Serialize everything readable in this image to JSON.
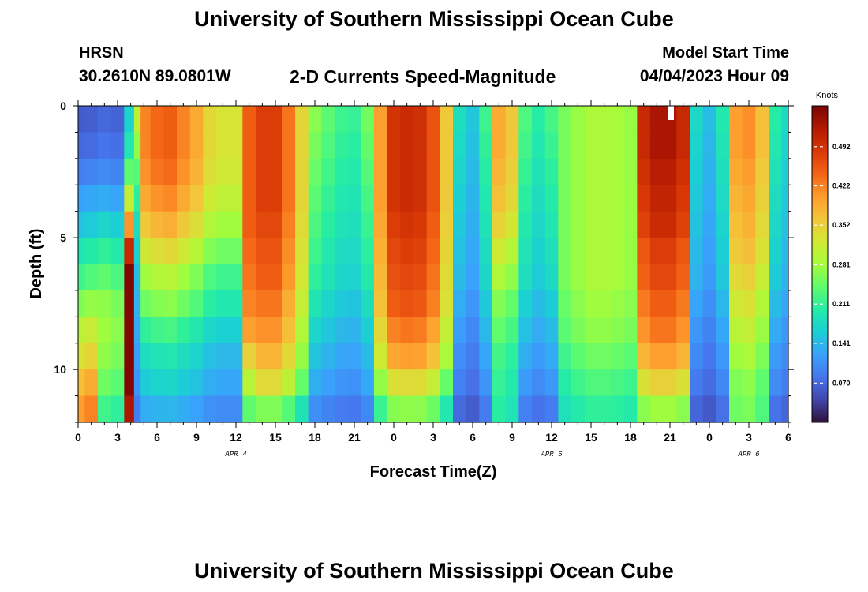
{
  "header": {
    "title": "University of Southern Mississippi Ocean Cube",
    "station": "HRSN",
    "coords": "30.2610N  89.0801W",
    "plot_title": "2-D Currents Speed-Magnitude",
    "start_label": "Model Start Time",
    "start_time": "04/04/2023 Hour 09"
  },
  "footer": {
    "title": "University of Southern Mississippi Ocean Cube"
  },
  "colors": {
    "c0": "#30123b",
    "c1": "#4145ab",
    "c2": "#4675ed",
    "c3": "#39a2fc",
    "c4": "#1bcfd4",
    "c5": "#24eca6",
    "c6": "#61fc6c",
    "c7": "#a4fc3b",
    "c8": "#d1e834",
    "c9": "#f3c63a",
    "c10": "#fe9b2d",
    "c11": "#f36315",
    "c12": "#d93806",
    "c13": "#b11901",
    "c14": "#7a0402"
  },
  "chart_data": {
    "type": "heatmap",
    "title": "2-D Currents Speed-Magnitude",
    "xlabel": "Forecast Time(Z)",
    "ylabel": "Depth (ft)",
    "x_unit": "hours since 04/04/2023 00Z",
    "xlim": [
      0,
      54
    ],
    "ylim": [
      0,
      12
    ],
    "x_ticks": [
      {
        "h": 0,
        "label": "0"
      },
      {
        "h": 3,
        "label": "3"
      },
      {
        "h": 6,
        "label": "6"
      },
      {
        "h": 9,
        "label": "9"
      },
      {
        "h": 12,
        "label": "12"
      },
      {
        "h": 15,
        "label": "15"
      },
      {
        "h": 18,
        "label": "18"
      },
      {
        "h": 21,
        "label": "21"
      },
      {
        "h": 24,
        "label": "0"
      },
      {
        "h": 27,
        "label": "3"
      },
      {
        "h": 30,
        "label": "6"
      },
      {
        "h": 33,
        "label": "9"
      },
      {
        "h": 36,
        "label": "12"
      },
      {
        "h": 39,
        "label": "15"
      },
      {
        "h": 42,
        "label": "18"
      },
      {
        "h": 45,
        "label": "21"
      },
      {
        "h": 48,
        "label": "0"
      },
      {
        "h": 51,
        "label": "3"
      },
      {
        "h": 54,
        "label": "6"
      }
    ],
    "date_labels": [
      {
        "h": 12,
        "label": "APR 4"
      },
      {
        "h": 36,
        "label": "APR 5"
      },
      {
        "h": 51,
        "label": "APR 6"
      }
    ],
    "y_ticks": [
      {
        "d": 0,
        "label": "0"
      },
      {
        "d": 5,
        "label": "5"
      },
      {
        "d": 10,
        "label": "10"
      }
    ],
    "colorbar": {
      "label": "Knots",
      "min": 0.0,
      "max": 0.565,
      "ticks": [
        0.07,
        0.141,
        0.211,
        0.281,
        0.352,
        0.422,
        0.492
      ],
      "tick_labels": [
        "0.070",
        "0.141",
        "0.211",
        "0.281",
        "0.352",
        "0.422",
        "0.492"
      ]
    },
    "depth_layers": 12,
    "depth_profiles": {
      "a": [
        0.06,
        0.07,
        0.09,
        0.12,
        0.15,
        0.19,
        0.22,
        0.26,
        0.3,
        0.33,
        0.37,
        0.4
      ],
      "b": [
        0.07,
        0.08,
        0.1,
        0.13,
        0.17,
        0.21,
        0.24,
        0.27,
        0.28,
        0.27,
        0.25,
        0.22
      ],
      "c": [
        0.34,
        0.3,
        0.26,
        0.23,
        0.2,
        0.18,
        0.16,
        0.15,
        0.14,
        0.13,
        0.12,
        0.1
      ],
      "d": [
        0.42,
        0.42,
        0.41,
        0.39,
        0.36,
        0.32,
        0.28,
        0.25,
        0.21,
        0.18,
        0.16,
        0.13
      ],
      "e": [
        0.45,
        0.45,
        0.45,
        0.45,
        0.45,
        0.44,
        0.43,
        0.42,
        0.4,
        0.35,
        0.3,
        0.24
      ],
      "f": [
        0.48,
        0.48,
        0.48,
        0.48,
        0.47,
        0.46,
        0.45,
        0.43,
        0.41,
        0.38,
        0.34,
        0.26
      ],
      "g": [
        0.28,
        0.27,
        0.26,
        0.25,
        0.24,
        0.23,
        0.22,
        0.2,
        0.18,
        0.16,
        0.14,
        0.11
      ],
      "h": [
        0.5,
        0.5,
        0.5,
        0.5,
        0.49,
        0.48,
        0.47,
        0.46,
        0.43,
        0.4,
        0.34,
        0.27
      ],
      "i": [
        0.4,
        0.4,
        0.39,
        0.38,
        0.36,
        0.33,
        0.3,
        0.27,
        0.25,
        0.23,
        0.22,
        0.21
      ],
      "j": [
        0.29,
        0.29,
        0.29,
        0.29,
        0.29,
        0.29,
        0.29,
        0.28,
        0.27,
        0.25,
        0.23,
        0.21
      ],
      "k": [
        0.53,
        0.53,
        0.52,
        0.51,
        0.5,
        0.48,
        0.47,
        0.45,
        0.43,
        0.4,
        0.35,
        0.28
      ],
      "l": [
        0.4,
        0.4,
        0.39,
        0.38,
        0.37,
        0.36,
        0.34,
        0.32,
        0.3,
        0.28,
        0.26,
        0.25
      ]
    },
    "columns": [
      {
        "t": 0.0,
        "p": "a",
        "s": 1.0
      },
      {
        "t": 1.0,
        "p": "a",
        "s": 1.05
      },
      {
        "t": 2.0,
        "p": "b",
        "s": 1.0
      },
      {
        "t": 3.0,
        "p": "b",
        "s": 0.95
      },
      {
        "t": 4.0,
        "p": "b",
        "s": 2.4
      },
      {
        "t": 4.5,
        "p": "c",
        "s": 0.9
      },
      {
        "t": 5.0,
        "p": "d",
        "s": 1.0
      },
      {
        "t": 6.0,
        "p": "d",
        "s": 1.05
      },
      {
        "t": 7.0,
        "p": "d",
        "s": 1.07
      },
      {
        "t": 8.0,
        "p": "d",
        "s": 1.0
      },
      {
        "t": 9.0,
        "p": "d",
        "s": 0.93
      },
      {
        "t": 10.0,
        "p": "d",
        "s": 0.82
      },
      {
        "t": 11.0,
        "p": "d",
        "s": 0.78
      },
      {
        "t": 12.0,
        "p": "d",
        "s": 0.78
      },
      {
        "t": 13.0,
        "p": "e",
        "s": 1.0
      },
      {
        "t": 14.0,
        "p": "f",
        "s": 1.0
      },
      {
        "t": 15.0,
        "p": "f",
        "s": 1.0
      },
      {
        "t": 16.0,
        "p": "f",
        "s": 0.9
      },
      {
        "t": 17.0,
        "p": "f",
        "s": 0.72
      },
      {
        "t": 18.0,
        "p": "g",
        "s": 0.95
      },
      {
        "t": 19.0,
        "p": "g",
        "s": 0.85
      },
      {
        "t": 20.0,
        "p": "g",
        "s": 0.78
      },
      {
        "t": 21.0,
        "p": "g",
        "s": 0.76
      },
      {
        "t": 22.0,
        "p": "g",
        "s": 0.9
      },
      {
        "t": 23.0,
        "p": "h",
        "s": 0.8
      },
      {
        "t": 24.0,
        "p": "h",
        "s": 0.98
      },
      {
        "t": 25.0,
        "p": "h",
        "s": 1.0
      },
      {
        "t": 26.0,
        "p": "h",
        "s": 0.99
      },
      {
        "t": 27.0,
        "p": "h",
        "s": 0.92
      },
      {
        "t": 28.0,
        "p": "h",
        "s": 0.72
      },
      {
        "t": 29.0,
        "p": "g",
        "s": 0.65
      },
      {
        "t": 30.0,
        "p": "g",
        "s": 0.55
      },
      {
        "t": 31.0,
        "p": "g",
        "s": 0.78
      },
      {
        "t": 32.0,
        "p": "i",
        "s": 0.97
      },
      {
        "t": 33.0,
        "p": "i",
        "s": 0.9
      },
      {
        "t": 34.0,
        "p": "g",
        "s": 0.82
      },
      {
        "t": 35.0,
        "p": "g",
        "s": 0.72
      },
      {
        "t": 36.0,
        "p": "g",
        "s": 0.8
      },
      {
        "t": 37.0,
        "p": "j",
        "s": 0.88
      },
      {
        "t": 38.0,
        "p": "j",
        "s": 0.95
      },
      {
        "t": 39.0,
        "p": "j",
        "s": 1.0
      },
      {
        "t": 40.0,
        "p": "j",
        "s": 1.0
      },
      {
        "t": 41.0,
        "p": "j",
        "s": 0.98
      },
      {
        "t": 42.0,
        "p": "j",
        "s": 0.95
      },
      {
        "t": 43.0,
        "p": "k",
        "s": 0.95
      },
      {
        "t": 44.0,
        "p": "k",
        "s": 1.0
      },
      {
        "t": 45.0,
        "p": "k",
        "s": 1.0
      },
      {
        "t": 46.0,
        "p": "k",
        "s": 0.95
      },
      {
        "t": 47.0,
        "p": "g",
        "s": 0.62
      },
      {
        "t": 48.0,
        "p": "g",
        "s": 0.52
      },
      {
        "t": 49.0,
        "p": "g",
        "s": 0.7
      },
      {
        "t": 50.0,
        "p": "l",
        "s": 1.0
      },
      {
        "t": 51.0,
        "p": "l",
        "s": 1.03
      },
      {
        "t": 52.0,
        "p": "l",
        "s": 0.92
      },
      {
        "t": 53.0,
        "p": "g",
        "s": 0.72
      },
      {
        "t": 54.0,
        "p": "g",
        "s": 0.62
      }
    ]
  }
}
